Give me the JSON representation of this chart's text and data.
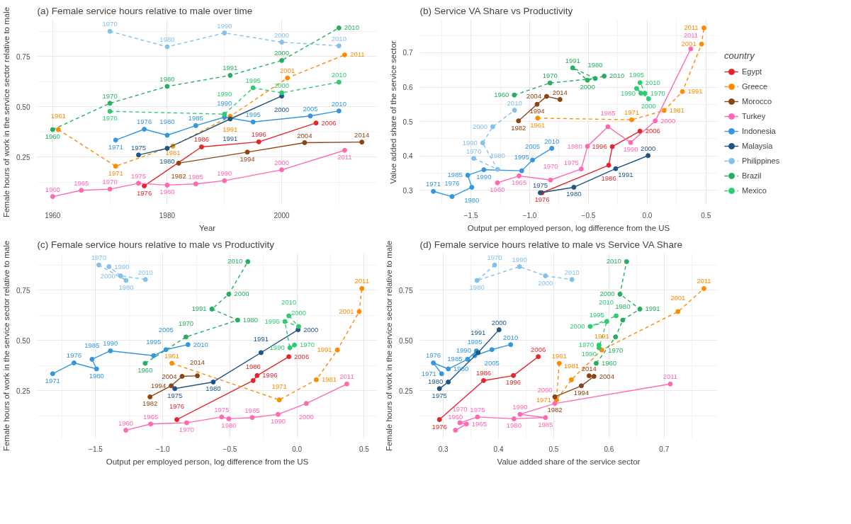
{
  "chart_data": [
    {
      "type": "line",
      "title": "(a) Female service hours relative to male over time",
      "xlabel": "Year",
      "ylabel": "Female hours of work in the service sector relative to male",
      "xlim": [
        1957.3,
        2016.7
      ],
      "ylim": [
        0.011,
        0.934
      ],
      "xticks": [
        1960,
        1980,
        2000
      ],
      "yticks": [
        {
          "value": 0.25,
          "label": "0.25"
        },
        {
          "value": 0.5,
          "label": "0.50"
        },
        {
          "value": 0.75,
          "label": "0.75"
        }
      ],
      "grid": true,
      "marker": "circle",
      "legend": false,
      "series": [
        {
          "color": "#e3262b",
          "line_style": "solid",
          "x": [
            1976,
            1986,
            1996,
            2006
          ],
          "values": [
            0.106,
            0.3,
            0.325,
            0.419
          ]
        },
        {
          "color": "#ff8c00",
          "line_style": "dashed",
          "x": [
            1961,
            1971,
            1981,
            1991,
            2001,
            2011
          ],
          "values": [
            0.386,
            0.204,
            0.304,
            0.452,
            0.643,
            0.758
          ]
        },
        {
          "color": "#8b4513",
          "line_style": "solid",
          "x": [
            1982,
            1994,
            2004,
            2014
          ],
          "values": [
            0.219,
            0.274,
            0.321,
            0.324
          ]
        },
        {
          "color": "#ff69b4",
          "line_style": "solid",
          "x": [
            1960,
            1965,
            1970,
            1975,
            1980,
            1985,
            1990,
            2000,
            2011
          ],
          "values": [
            0.053,
            0.084,
            0.09,
            0.119,
            0.11,
            0.116,
            0.132,
            0.186,
            0.283
          ]
        },
        {
          "color": "#3498db",
          "line_style": "solid",
          "x": [
            1971,
            1976,
            1980,
            1985,
            1990,
            1995,
            2005,
            2010
          ],
          "values": [
            0.334,
            0.388,
            0.358,
            0.406,
            0.448,
            0.424,
            0.454,
            0.479
          ]
        },
        {
          "color": "#1f5582",
          "line_style": "solid",
          "x": [
            1975,
            1980,
            1991,
            2000
          ],
          "values": [
            0.26,
            0.293,
            0.439,
            0.553
          ]
        },
        {
          "color": "#85c1e9",
          "line_style": "dashed",
          "x": [
            1970,
            1980,
            1990,
            2000,
            2010
          ],
          "values": [
            0.875,
            0.798,
            0.867,
            0.821,
            0.803
          ]
        },
        {
          "color": "#27ae60",
          "line_style": "dashed",
          "x": [
            1960,
            1970,
            1980,
            1991,
            2000,
            2010
          ],
          "values": [
            0.386,
            0.517,
            0.601,
            0.656,
            0.73,
            0.892
          ]
        },
        {
          "color": "#2ecc71",
          "line_style": "dashed",
          "x": [
            1970,
            1990,
            1995,
            2000,
            2010
          ],
          "values": [
            0.477,
            0.463,
            0.594,
            0.569,
            0.622
          ]
        }
      ],
      "annotations": [
        {
          "text": "1976",
          "x": 1976,
          "y": 0.106
        },
        {
          "text": "1986",
          "x": 1986,
          "y": 0.3
        },
        {
          "text": "1996",
          "x": 1996,
          "y": 0.325
        },
        {
          "text": "2006",
          "x": 2006,
          "y": 0.419
        },
        {
          "text": "1961",
          "x": 1961,
          "y": 0.386
        },
        {
          "text": "1971",
          "x": 1971,
          "y": 0.204
        },
        {
          "text": "1981",
          "x": 1981,
          "y": 0.304
        },
        {
          "text": "1991",
          "x": 1991,
          "y": 0.452
        },
        {
          "text": "2001",
          "x": 2001,
          "y": 0.643
        },
        {
          "text": "2011",
          "x": 2011,
          "y": 0.758
        },
        {
          "text": "1982",
          "x": 1982,
          "y": 0.219
        },
        {
          "text": "1994",
          "x": 1994,
          "y": 0.274
        },
        {
          "text": "2004",
          "x": 2004,
          "y": 0.321
        },
        {
          "text": "2014",
          "x": 2014,
          "y": 0.324
        },
        {
          "text": "1960",
          "x": 1960,
          "y": 0.053
        },
        {
          "text": "1965",
          "x": 1965,
          "y": 0.084
        },
        {
          "text": "1970",
          "x": 1970,
          "y": 0.09
        },
        {
          "text": "1975",
          "x": 1975,
          "y": 0.119
        },
        {
          "text": "1980",
          "x": 1980,
          "y": 0.11
        },
        {
          "text": "1985",
          "x": 1985,
          "y": 0.116
        },
        {
          "text": "1990",
          "x": 1990,
          "y": 0.132
        },
        {
          "text": "2000",
          "x": 2000,
          "y": 0.186
        },
        {
          "text": "2011",
          "x": 2011,
          "y": 0.283
        },
        {
          "text": "1971",
          "x": 1971,
          "y": 0.334
        },
        {
          "text": "1976",
          "x": 1976,
          "y": 0.388
        },
        {
          "text": "1980",
          "x": 1980,
          "y": 0.358
        },
        {
          "text": "1985",
          "x": 1985,
          "y": 0.406
        },
        {
          "text": "1990",
          "x": 1990,
          "y": 0.448
        },
        {
          "text": "1995",
          "x": 1995,
          "y": 0.424
        },
        {
          "text": "2005",
          "x": 2005,
          "y": 0.454
        },
        {
          "text": "2010",
          "x": 2010,
          "y": 0.479
        },
        {
          "text": "1975",
          "x": 1975,
          "y": 0.26
        },
        {
          "text": "1980",
          "x": 1980,
          "y": 0.293
        },
        {
          "text": "1991",
          "x": 1991,
          "y": 0.439
        },
        {
          "text": "2000",
          "x": 2000,
          "y": 0.553
        },
        {
          "text": "1970",
          "x": 1970,
          "y": 0.875
        },
        {
          "text": "1980",
          "x": 1980,
          "y": 0.798
        },
        {
          "text": "1990",
          "x": 1990,
          "y": 0.867
        },
        {
          "text": "2000",
          "x": 2000,
          "y": 0.821
        },
        {
          "text": "2010",
          "x": 2010,
          "y": 0.803
        },
        {
          "text": "1960",
          "x": 1960,
          "y": 0.386
        },
        {
          "text": "1970",
          "x": 1970,
          "y": 0.517
        },
        {
          "text": "1980",
          "x": 1980,
          "y": 0.601
        },
        {
          "text": "1991",
          "x": 1991,
          "y": 0.656
        },
        {
          "text": "2000",
          "x": 2000,
          "y": 0.73
        },
        {
          "text": "2010",
          "x": 2010,
          "y": 0.892
        },
        {
          "text": "1970",
          "x": 1970,
          "y": 0.477
        },
        {
          "text": "1990",
          "x": 1990,
          "y": 0.463
        },
        {
          "text": "1995",
          "x": 1995,
          "y": 0.594
        },
        {
          "text": "2000",
          "x": 2000,
          "y": 0.569
        },
        {
          "text": "2010",
          "x": 2010,
          "y": 0.622
        }
      ]
    },
    {
      "type": "line",
      "title": "(b) Service VA Share vs Productivity",
      "xlabel": "Output per employed person, log difference from the US",
      "ylabel": "Value added share of the service sector",
      "xlim": [
        -1.935,
        0.598
      ],
      "ylim": [
        0.2575,
        0.7965
      ],
      "xticks": [
        {
          "value": -1.5,
          "label": "−1.5"
        },
        {
          "value": -1.0,
          "label": "−1.0"
        },
        {
          "value": -0.5,
          "label": "−0.5"
        },
        {
          "value": 0.0,
          "label": "0.0"
        },
        {
          "value": 0.5,
          "label": "0.5"
        }
      ],
      "yticks": [
        0.3,
        0.4,
        0.5,
        0.6,
        0.7
      ],
      "grid": true,
      "marker": "circle",
      "legend": "right",
      "legend_title": "country",
      "series": [
        {
          "name": "Egypt",
          "color": "#e3262b",
          "line_style": "solid",
          "x": [
            -0.895,
            -0.327,
            -0.297,
            -0.061
          ],
          "values": [
            0.293,
            0.373,
            0.427,
            0.472
          ]
        },
        {
          "name": "Greece",
          "color": "#ff8c00",
          "line_style": "dashed",
          "x": [
            -0.932,
            -0.132,
            0.144,
            0.3,
            0.463,
            0.483
          ],
          "values": [
            0.51,
            0.505,
            0.532,
            0.587,
            0.725,
            0.772
          ]
        },
        {
          "name": "Morocco",
          "color": "#8b4513",
          "line_style": "solid",
          "x": [
            -1.095,
            -0.937,
            -0.856,
            -0.742
          ],
          "values": [
            0.502,
            0.55,
            0.573,
            0.564
          ]
        },
        {
          "name": "Turkey",
          "color": "#ff69b4",
          "line_style": "solid",
          "x": [
            -1.275,
            -1.09,
            -0.822,
            -0.561,
            -0.508,
            -0.334,
            -0.141,
            0.069,
            0.371
          ],
          "values": [
            0.322,
            0.342,
            0.33,
            0.362,
            0.428,
            0.485,
            0.439,
            0.502,
            0.711
          ]
        },
        {
          "name": "Indonesia",
          "color": "#3498db",
          "line_style": "solid",
          "x": [
            -1.82,
            -1.661,
            -1.493,
            -1.527,
            -1.39,
            -1.068,
            -0.976,
            -0.812
          ],
          "values": [
            0.297,
            0.282,
            0.309,
            0.344,
            0.36,
            0.357,
            0.388,
            0.422
          ]
        },
        {
          "name": "Malaysia",
          "color": "#1f5582",
          "line_style": "solid",
          "x": [
            -0.91,
            -0.624,
            -0.268,
            0.008
          ],
          "values": [
            0.293,
            0.309,
            0.363,
            0.401
          ]
        },
        {
          "name": "Philippines",
          "color": "#85c1e9",
          "line_style": "dashed",
          "x": [
            -1.476,
            -1.273,
            -1.4,
            -1.314,
            -1.129
          ],
          "values": [
            0.393,
            0.361,
            0.438,
            0.485,
            0.533
          ]
        },
        {
          "name": "Brazil",
          "color": "#27ae60",
          "line_style": "dashed",
          "x": [
            -1.131,
            -0.827,
            -0.442,
            -0.634,
            -0.508,
            -0.366
          ],
          "values": [
            0.577,
            0.612,
            0.625,
            0.656,
            0.62,
            0.632
          ]
        },
        {
          "name": "Mexico",
          "color": "#2ecc71",
          "line_style": "dashed",
          "x": [
            -0.019,
            -0.053,
            -0.09,
            0.012,
            -0.061
          ],
          "values": [
            0.582,
            0.582,
            0.596,
            0.566,
            0.613
          ]
        }
      ],
      "annotations": [
        {
          "text": "1976",
          "x": -0.895,
          "y": 0.293
        },
        {
          "text": "1986",
          "x": -0.327,
          "y": 0.373
        },
        {
          "text": "1996",
          "x": -0.297,
          "y": 0.427
        },
        {
          "text": "2006",
          "x": -0.061,
          "y": 0.472
        },
        {
          "text": "1961",
          "x": -0.932,
          "y": 0.51
        },
        {
          "text": "1971",
          "x": -0.132,
          "y": 0.505
        },
        {
          "text": "1981",
          "x": 0.144,
          "y": 0.532
        },
        {
          "text": "1991",
          "x": 0.3,
          "y": 0.587
        },
        {
          "text": "2001",
          "x": 0.463,
          "y": 0.725
        },
        {
          "text": "2011",
          "x": 0.483,
          "y": 0.772
        },
        {
          "text": "1982",
          "x": -1.095,
          "y": 0.502
        },
        {
          "text": "1994",
          "x": -0.937,
          "y": 0.55
        },
        {
          "text": "2004",
          "x": -0.856,
          "y": 0.573
        },
        {
          "text": "2014",
          "x": -0.742,
          "y": 0.564
        },
        {
          "text": "1960",
          "x": -1.275,
          "y": 0.322
        },
        {
          "text": "1965",
          "x": -1.09,
          "y": 0.342
        },
        {
          "text": "1970",
          "x": -0.822,
          "y": 0.33
        },
        {
          "text": "1975",
          "x": -0.561,
          "y": 0.362
        },
        {
          "text": "1980",
          "x": -0.508,
          "y": 0.428
        },
        {
          "text": "1985",
          "x": -0.334,
          "y": 0.485
        },
        {
          "text": "1990",
          "x": -0.141,
          "y": 0.439
        },
        {
          "text": "2000",
          "x": 0.069,
          "y": 0.502
        },
        {
          "text": "2011",
          "x": 0.371,
          "y": 0.711
        },
        {
          "text": "1971",
          "x": -1.82,
          "y": 0.297
        },
        {
          "text": "1976",
          "x": -1.661,
          "y": 0.282
        },
        {
          "text": "1980",
          "x": -1.493,
          "y": 0.309
        },
        {
          "text": "1985",
          "x": -1.527,
          "y": 0.344
        },
        {
          "text": "1990",
          "x": -1.39,
          "y": 0.36
        },
        {
          "text": "1995",
          "x": -1.068,
          "y": 0.357
        },
        {
          "text": "2005",
          "x": -0.976,
          "y": 0.388
        },
        {
          "text": "2010",
          "x": -0.812,
          "y": 0.422
        },
        {
          "text": "1975",
          "x": -0.91,
          "y": 0.293
        },
        {
          "text": "1980",
          "x": -0.624,
          "y": 0.309
        },
        {
          "text": "1991",
          "x": -0.268,
          "y": 0.363
        },
        {
          "text": "2000",
          "x": 0.008,
          "y": 0.401
        },
        {
          "text": "1970",
          "x": -1.476,
          "y": 0.393
        },
        {
          "text": "1980",
          "x": -1.273,
          "y": 0.361
        },
        {
          "text": "1990",
          "x": -1.4,
          "y": 0.438
        },
        {
          "text": "2000",
          "x": -1.314,
          "y": 0.485
        },
        {
          "text": "2010",
          "x": -1.129,
          "y": 0.533
        },
        {
          "text": "1960",
          "x": -1.131,
          "y": 0.577
        },
        {
          "text": "1970",
          "x": -0.827,
          "y": 0.612
        },
        {
          "text": "1980",
          "x": -0.442,
          "y": 0.625
        },
        {
          "text": "1991",
          "x": -0.634,
          "y": 0.656
        },
        {
          "text": "2000",
          "x": -0.508,
          "y": 0.62
        },
        {
          "text": "2010",
          "x": -0.366,
          "y": 0.632
        },
        {
          "text": "1970",
          "x": -0.019,
          "y": 0.582
        },
        {
          "text": "1990",
          "x": -0.053,
          "y": 0.582
        },
        {
          "text": "1995",
          "x": -0.09,
          "y": 0.596
        },
        {
          "text": "2000",
          "x": 0.012,
          "y": 0.566
        },
        {
          "text": "2010",
          "x": -0.061,
          "y": 0.613
        }
      ]
    },
    {
      "type": "line",
      "title": "(c) Female service hours relative to male vs Productivity",
      "xlabel": "Output per employed person, log difference from the US",
      "ylabel": "Female hours of work in the service sector relative to male",
      "xlim": [
        -1.935,
        0.598
      ],
      "ylim": [
        0.011,
        0.934
      ],
      "xticks": [
        {
          "value": -1.5,
          "label": "−1.5"
        },
        {
          "value": -1.0,
          "label": "−1.0"
        },
        {
          "value": -0.5,
          "label": "−0.5"
        },
        {
          "value": 0.0,
          "label": "0.0"
        },
        {
          "value": 0.5,
          "label": "0.5"
        }
      ],
      "yticks": [
        {
          "value": 0.25,
          "label": "0.25"
        },
        {
          "value": 0.5,
          "label": "0.50"
        },
        {
          "value": 0.75,
          "label": "0.75"
        }
      ],
      "grid": true,
      "marker": "circle",
      "legend": false,
      "series": [
        {
          "color": "#e3262b",
          "line_style": "solid",
          "x": [
            -0.895,
            -0.327,
            -0.297,
            -0.061
          ],
          "values": [
            0.106,
            0.3,
            0.325,
            0.419
          ]
        },
        {
          "color": "#ff8c00",
          "line_style": "dashed",
          "x": [
            -0.932,
            -0.132,
            0.144,
            0.3,
            0.463,
            0.483
          ],
          "values": [
            0.386,
            0.204,
            0.304,
            0.452,
            0.643,
            0.758
          ]
        },
        {
          "color": "#8b4513",
          "line_style": "solid",
          "x": [
            -1.095,
            -0.937,
            -0.856,
            -0.742
          ],
          "values": [
            0.219,
            0.274,
            0.321,
            0.324
          ]
        },
        {
          "color": "#ff69b4",
          "line_style": "solid",
          "x": [
            -1.275,
            -1.09,
            -0.822,
            -0.561,
            -0.508,
            -0.334,
            -0.141,
            0.069,
            0.371
          ],
          "values": [
            0.053,
            0.084,
            0.09,
            0.119,
            0.11,
            0.116,
            0.132,
            0.186,
            0.283
          ]
        },
        {
          "color": "#3498db",
          "line_style": "solid",
          "x": [
            -1.82,
            -1.661,
            -1.493,
            -1.527,
            -1.39,
            -1.068,
            -0.976,
            -0.812
          ],
          "values": [
            0.334,
            0.388,
            0.358,
            0.406,
            0.448,
            0.424,
            0.454,
            0.479
          ]
        },
        {
          "color": "#1f5582",
          "line_style": "solid",
          "x": [
            -0.91,
            -0.624,
            -0.268,
            0.008
          ],
          "values": [
            0.26,
            0.293,
            0.439,
            0.553
          ]
        },
        {
          "color": "#85c1e9",
          "line_style": "dashed",
          "x": [
            -1.476,
            -1.273,
            -1.4,
            -1.314,
            -1.129
          ],
          "values": [
            0.875,
            0.798,
            0.867,
            0.821,
            0.803
          ]
        },
        {
          "color": "#27ae60",
          "line_style": "dashed",
          "x": [
            -1.131,
            -0.827,
            -0.442,
            -0.634,
            -0.508,
            -0.366
          ],
          "values": [
            0.386,
            0.517,
            0.601,
            0.656,
            0.73,
            0.892
          ]
        },
        {
          "color": "#2ecc71",
          "line_style": "dashed",
          "x": [
            -0.019,
            -0.053,
            -0.09,
            0.012,
            -0.061
          ],
          "values": [
            0.477,
            0.463,
            0.594,
            0.569,
            0.622
          ]
        }
      ],
      "annotations": [
        {
          "text": "1976",
          "x": -0.895,
          "y": 0.106
        },
        {
          "text": "1986",
          "x": -0.327,
          "y": 0.3
        },
        {
          "text": "1996",
          "x": -0.297,
          "y": 0.325
        },
        {
          "text": "2006",
          "x": -0.061,
          "y": 0.419
        },
        {
          "text": "1961",
          "x": -0.932,
          "y": 0.386
        },
        {
          "text": "1971",
          "x": -0.132,
          "y": 0.204
        },
        {
          "text": "1981",
          "x": 0.144,
          "y": 0.304
        },
        {
          "text": "1991",
          "x": 0.3,
          "y": 0.452
        },
        {
          "text": "2001",
          "x": 0.463,
          "y": 0.643
        },
        {
          "text": "2011",
          "x": 0.483,
          "y": 0.758
        },
        {
          "text": "1982",
          "x": -1.095,
          "y": 0.219
        },
        {
          "text": "1994",
          "x": -0.937,
          "y": 0.274
        },
        {
          "text": "2004",
          "x": -0.856,
          "y": 0.321
        },
        {
          "text": "2014",
          "x": -0.742,
          "y": 0.324
        },
        {
          "text": "1960",
          "x": -1.275,
          "y": 0.053
        },
        {
          "text": "1965",
          "x": -1.09,
          "y": 0.084
        },
        {
          "text": "1970",
          "x": -0.822,
          "y": 0.09
        },
        {
          "text": "1975",
          "x": -0.561,
          "y": 0.119
        },
        {
          "text": "1980",
          "x": -0.508,
          "y": 0.11
        },
        {
          "text": "1985",
          "x": -0.334,
          "y": 0.116
        },
        {
          "text": "1990",
          "x": -0.141,
          "y": 0.132
        },
        {
          "text": "2000",
          "x": 0.069,
          "y": 0.186
        },
        {
          "text": "2011",
          "x": 0.371,
          "y": 0.283
        },
        {
          "text": "1971",
          "x": -1.82,
          "y": 0.334
        },
        {
          "text": "1976",
          "x": -1.661,
          "y": 0.388
        },
        {
          "text": "1980",
          "x": -1.493,
          "y": 0.358
        },
        {
          "text": "1985",
          "x": -1.527,
          "y": 0.406
        },
        {
          "text": "1990",
          "x": -1.39,
          "y": 0.448
        },
        {
          "text": "1995",
          "x": -1.068,
          "y": 0.424
        },
        {
          "text": "2005",
          "x": -0.976,
          "y": 0.454
        },
        {
          "text": "2010",
          "x": -0.812,
          "y": 0.479
        },
        {
          "text": "1975",
          "x": -0.91,
          "y": 0.26
        },
        {
          "text": "1980",
          "x": -0.624,
          "y": 0.293
        },
        {
          "text": "1991",
          "x": -0.268,
          "y": 0.439
        },
        {
          "text": "2000",
          "x": 0.008,
          "y": 0.553
        },
        {
          "text": "1970",
          "x": -1.476,
          "y": 0.875
        },
        {
          "text": "1980",
          "x": -1.273,
          "y": 0.798
        },
        {
          "text": "1990",
          "x": -1.4,
          "y": 0.867
        },
        {
          "text": "2000",
          "x": -1.314,
          "y": 0.821
        },
        {
          "text": "2010",
          "x": -1.129,
          "y": 0.803
        },
        {
          "text": "1960",
          "x": -1.131,
          "y": 0.386
        },
        {
          "text": "1970",
          "x": -0.827,
          "y": 0.517
        },
        {
          "text": "1980",
          "x": -0.442,
          "y": 0.601
        },
        {
          "text": "1991",
          "x": -0.634,
          "y": 0.656
        },
        {
          "text": "2000",
          "x": -0.508,
          "y": 0.73
        },
        {
          "text": "2010",
          "x": -0.366,
          "y": 0.892
        },
        {
          "text": "1970",
          "x": -0.019,
          "y": 0.477
        },
        {
          "text": "1990",
          "x": -0.053,
          "y": 0.463
        },
        {
          "text": "1995",
          "x": -0.09,
          "y": 0.594
        },
        {
          "text": "2000",
          "x": 0.012,
          "y": 0.569
        },
        {
          "text": "2010",
          "x": -0.061,
          "y": 0.622
        }
      ]
    },
    {
      "type": "line",
      "title": "(d) Female service hours relative to male vs Service VA Share",
      "xlabel": "Value added share of the service sector",
      "ylabel": "Female hours of work in the service sector relative to male",
      "xlim": [
        0.2575,
        0.7965
      ],
      "ylim": [
        0.011,
        0.934
      ],
      "xticks": [
        0.3,
        0.4,
        0.5,
        0.6,
        0.7
      ],
      "yticks": [
        {
          "value": 0.25,
          "label": "0.25"
        },
        {
          "value": 0.5,
          "label": "0.50"
        },
        {
          "value": 0.75,
          "label": "0.75"
        }
      ],
      "grid": true,
      "marker": "circle",
      "legend": false,
      "series": [
        {
          "color": "#e3262b",
          "line_style": "solid",
          "x": [
            0.293,
            0.373,
            0.427,
            0.472
          ],
          "values": [
            0.106,
            0.3,
            0.325,
            0.419
          ]
        },
        {
          "color": "#ff8c00",
          "line_style": "dashed",
          "x": [
            0.51,
            0.505,
            0.532,
            0.587,
            0.725,
            0.772
          ],
          "values": [
            0.386,
            0.204,
            0.304,
            0.452,
            0.643,
            0.758
          ]
        },
        {
          "color": "#8b4513",
          "line_style": "solid",
          "x": [
            0.502,
            0.55,
            0.573,
            0.564
          ],
          "values": [
            0.219,
            0.274,
            0.321,
            0.324
          ]
        },
        {
          "color": "#ff69b4",
          "line_style": "solid",
          "x": [
            0.322,
            0.342,
            0.33,
            0.362,
            0.428,
            0.485,
            0.439,
            0.502,
            0.711
          ],
          "values": [
            0.053,
            0.084,
            0.09,
            0.119,
            0.11,
            0.116,
            0.132,
            0.186,
            0.283
          ]
        },
        {
          "color": "#3498db",
          "line_style": "solid",
          "x": [
            0.297,
            0.282,
            0.309,
            0.344,
            0.36,
            0.357,
            0.388,
            0.422
          ],
          "values": [
            0.334,
            0.388,
            0.358,
            0.406,
            0.448,
            0.424,
            0.454,
            0.479
          ]
        },
        {
          "color": "#1f5582",
          "line_style": "solid",
          "x": [
            0.293,
            0.309,
            0.363,
            0.401
          ],
          "values": [
            0.26,
            0.293,
            0.439,
            0.553
          ]
        },
        {
          "color": "#85c1e9",
          "line_style": "dashed",
          "x": [
            0.393,
            0.361,
            0.438,
            0.485,
            0.533
          ],
          "values": [
            0.875,
            0.798,
            0.867,
            0.821,
            0.803
          ]
        },
        {
          "color": "#27ae60",
          "line_style": "dashed",
          "x": [
            0.577,
            0.612,
            0.625,
            0.656,
            0.62,
            0.632
          ],
          "values": [
            0.386,
            0.517,
            0.601,
            0.656,
            0.73,
            0.892
          ]
        },
        {
          "color": "#2ecc71",
          "line_style": "dashed",
          "x": [
            0.582,
            0.582,
            0.596,
            0.566,
            0.613
          ],
          "values": [
            0.477,
            0.463,
            0.594,
            0.569,
            0.622
          ]
        }
      ],
      "annotations": [
        {
          "text": "1976",
          "x": 0.293,
          "y": 0.106
        },
        {
          "text": "1986",
          "x": 0.373,
          "y": 0.3
        },
        {
          "text": "1996",
          "x": 0.427,
          "y": 0.325
        },
        {
          "text": "2006",
          "x": 0.472,
          "y": 0.419
        },
        {
          "text": "1961",
          "x": 0.51,
          "y": 0.386
        },
        {
          "text": "1971",
          "x": 0.505,
          "y": 0.204
        },
        {
          "text": "1981",
          "x": 0.532,
          "y": 0.304
        },
        {
          "text": "1991",
          "x": 0.587,
          "y": 0.452
        },
        {
          "text": "2001",
          "x": 0.725,
          "y": 0.643
        },
        {
          "text": "2011",
          "x": 0.772,
          "y": 0.758
        },
        {
          "text": "1982",
          "x": 0.502,
          "y": 0.219
        },
        {
          "text": "1994",
          "x": 0.55,
          "y": 0.274
        },
        {
          "text": "2004",
          "x": 0.573,
          "y": 0.321
        },
        {
          "text": "2014",
          "x": 0.564,
          "y": 0.324
        },
        {
          "text": "1960",
          "x": 0.322,
          "y": 0.053
        },
        {
          "text": "1965",
          "x": 0.342,
          "y": 0.084
        },
        {
          "text": "1970",
          "x": 0.33,
          "y": 0.09
        },
        {
          "text": "1975",
          "x": 0.362,
          "y": 0.119
        },
        {
          "text": "1980",
          "x": 0.428,
          "y": 0.11
        },
        {
          "text": "1985",
          "x": 0.485,
          "y": 0.116
        },
        {
          "text": "1990",
          "x": 0.439,
          "y": 0.132
        },
        {
          "text": "2000",
          "x": 0.502,
          "y": 0.186
        },
        {
          "text": "2011",
          "x": 0.711,
          "y": 0.283
        },
        {
          "text": "1971",
          "x": 0.297,
          "y": 0.334
        },
        {
          "text": "1976",
          "x": 0.282,
          "y": 0.388
        },
        {
          "text": "1980",
          "x": 0.309,
          "y": 0.358
        },
        {
          "text": "1985",
          "x": 0.344,
          "y": 0.406
        },
        {
          "text": "1990",
          "x": 0.36,
          "y": 0.448
        },
        {
          "text": "1995",
          "x": 0.357,
          "y": 0.424
        },
        {
          "text": "2005",
          "x": 0.388,
          "y": 0.454
        },
        {
          "text": "2010",
          "x": 0.422,
          "y": 0.479
        },
        {
          "text": "1975",
          "x": 0.293,
          "y": 0.26
        },
        {
          "text": "1980",
          "x": 0.309,
          "y": 0.293
        },
        {
          "text": "1991",
          "x": 0.363,
          "y": 0.439
        },
        {
          "text": "2000",
          "x": 0.401,
          "y": 0.553
        },
        {
          "text": "1970",
          "x": 0.393,
          "y": 0.875
        },
        {
          "text": "1980",
          "x": 0.361,
          "y": 0.798
        },
        {
          "text": "1990",
          "x": 0.438,
          "y": 0.867
        },
        {
          "text": "2000",
          "x": 0.485,
          "y": 0.821
        },
        {
          "text": "2010",
          "x": 0.533,
          "y": 0.803
        },
        {
          "text": "1960",
          "x": 0.577,
          "y": 0.386
        },
        {
          "text": "1970",
          "x": 0.612,
          "y": 0.517
        },
        {
          "text": "1980",
          "x": 0.625,
          "y": 0.601
        },
        {
          "text": "1991",
          "x": 0.656,
          "y": 0.656
        },
        {
          "text": "2000",
          "x": 0.62,
          "y": 0.73
        },
        {
          "text": "2010",
          "x": 0.632,
          "y": 0.892
        },
        {
          "text": "1970",
          "x": 0.582,
          "y": 0.477
        },
        {
          "text": "1990",
          "x": 0.582,
          "y": 0.463
        },
        {
          "text": "1995",
          "x": 0.596,
          "y": 0.594
        },
        {
          "text": "2000",
          "x": 0.566,
          "y": 0.569
        },
        {
          "text": "2010",
          "x": 0.613,
          "y": 0.622
        }
      ]
    }
  ]
}
